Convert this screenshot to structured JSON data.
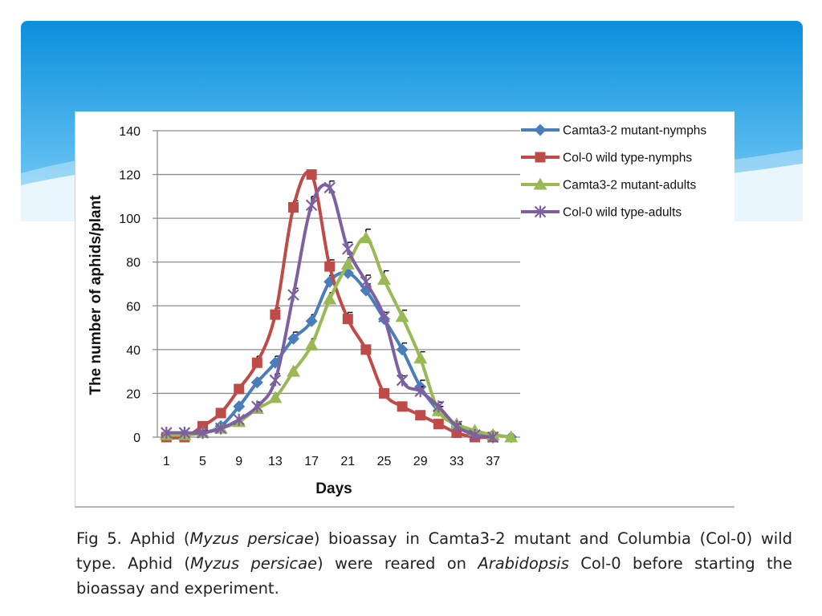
{
  "theme": {
    "banner_top": "#0a8fdd",
    "banner_bottom": "#7fd0f7",
    "wave_light": "#e9f6fd"
  },
  "caption": {
    "t1": "Fig 5. Aphid (",
    "t2": "Myzus persicae",
    "t3": ") bioassay in Camta3-2 mutant and Columbia (Col-0) wild type. Aphid (",
    "t4": "Myzus persicae",
    "t5": ") were reared on ",
    "t6": "Arabidopsis",
    "t7": " Col-0 before starting the bioassay and experiment."
  },
  "chart_data": {
    "type": "line",
    "title": "",
    "xlabel": "Days",
    "ylabel": "The number of aphids/plant",
    "ylim": [
      0,
      140
    ],
    "yticks": [
      0,
      20,
      40,
      60,
      80,
      100,
      120,
      140
    ],
    "x": [
      1,
      3,
      5,
      7,
      9,
      11,
      13,
      15,
      17,
      19,
      21,
      23,
      25,
      27,
      29,
      31,
      33,
      35,
      37,
      39
    ],
    "xtick_labels": [
      "1",
      "5",
      "9",
      "13",
      "17",
      "21",
      "25",
      "29",
      "33",
      "37"
    ],
    "grid": true,
    "legend_position": "top-right",
    "series": [
      {
        "name": "Camta3-2 mutant-nymphs",
        "color": "#4a7ebb",
        "marker": "diamond",
        "values": [
          1,
          1,
          2,
          5,
          14,
          25,
          34,
          45,
          53,
          71,
          75,
          67,
          54,
          40,
          23,
          12,
          5,
          2,
          1,
          0
        ],
        "errors": [
          0,
          0,
          1,
          1,
          2,
          2,
          3,
          3,
          3,
          3,
          3,
          3,
          3,
          3,
          3,
          2,
          1,
          0,
          0,
          0
        ]
      },
      {
        "name": "Col-0 wild type-nymphs",
        "color": "#be4b48",
        "marker": "square",
        "values": [
          0,
          0,
          5,
          11,
          22,
          34,
          56,
          105,
          120,
          78,
          54,
          40,
          20,
          14,
          10,
          6,
          2,
          0,
          0,
          null
        ],
        "errors": [
          0,
          0,
          1,
          2,
          2,
          3,
          3,
          3,
          2,
          3,
          3,
          2,
          2,
          2,
          2,
          1,
          1,
          0,
          0,
          0
        ]
      },
      {
        "name": "Camta3-2 mutant-adults",
        "color": "#98b954",
        "marker": "triangle",
        "values": [
          1,
          1,
          2,
          4,
          7,
          13,
          18,
          30,
          42,
          63,
          79,
          91,
          72,
          55,
          36,
          12,
          6,
          3,
          1,
          0
        ],
        "errors": [
          0,
          0,
          0,
          1,
          1,
          2,
          2,
          2,
          3,
          3,
          3,
          4,
          4,
          3,
          3,
          2,
          1,
          0,
          0,
          0
        ]
      },
      {
        "name": "Col-0 wild type-adults",
        "color": "#7d60a0",
        "marker": "star",
        "values": [
          2,
          2,
          2,
          4,
          8,
          14,
          26,
          65,
          106,
          114,
          86,
          71,
          55,
          26,
          21,
          14,
          5,
          1,
          0,
          null
        ],
        "errors": [
          0,
          0,
          1,
          1,
          1,
          2,
          3,
          3,
          4,
          3,
          3,
          3,
          2,
          2,
          2,
          2,
          1,
          0,
          0,
          0
        ]
      }
    ]
  }
}
